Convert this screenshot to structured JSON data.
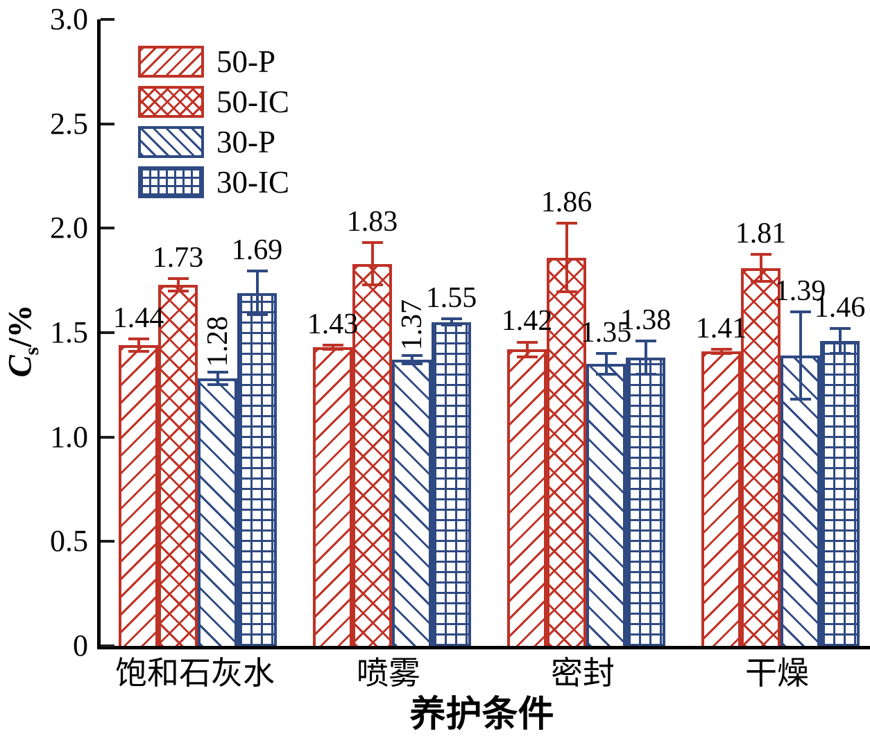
{
  "figure": {
    "y_axis_title": {
      "variable": "C",
      "subscript": "s",
      "unit": "/%"
    },
    "x_axis_title": "养护条件"
  },
  "chart_data": {
    "type": "bar",
    "title": "",
    "xlabel": "养护条件",
    "ylabel": "Cs/%",
    "ylim": [
      0,
      3.0
    ],
    "ytick_values": [
      0,
      0.5,
      1.0,
      1.5,
      2.0,
      2.5,
      3.0
    ],
    "ytick_labels": [
      "0",
      "0.5",
      "1.0",
      "1.5",
      "2.0",
      "2.5",
      "3.0"
    ],
    "grid": false,
    "legend_position": "upper-left",
    "error_bars": true,
    "categories": [
      "饱和石灰水",
      "喷雾",
      "密封",
      "干燥"
    ],
    "series": [
      {
        "name": "50-P",
        "color": "#bf3226",
        "hatch": "diagonal-up",
        "values": [
          1.44,
          1.43,
          1.42,
          1.41
        ],
        "errors": [
          0.03,
          0.01,
          0.035,
          0.01
        ],
        "label_vertical": [
          false,
          false,
          false,
          false
        ]
      },
      {
        "name": "50-IC",
        "color": "#bf3226",
        "hatch": "crosshatch",
        "values": [
          1.73,
          1.83,
          1.86,
          1.81
        ],
        "errors": [
          0.03,
          0.1,
          0.165,
          0.065
        ],
        "label_vertical": [
          false,
          false,
          false,
          false
        ]
      },
      {
        "name": "30-P",
        "color": "#2f4a82",
        "hatch": "diagonal-down",
        "values": [
          1.28,
          1.37,
          1.35,
          1.39
        ],
        "errors": [
          0.03,
          0.02,
          0.05,
          0.21
        ],
        "label_vertical": [
          true,
          true,
          false,
          false
        ]
      },
      {
        "name": "30-IC",
        "color": "#2f4a82",
        "hatch": "grid",
        "values": [
          1.69,
          1.55,
          1.38,
          1.46
        ],
        "errors": [
          0.105,
          0.015,
          0.08,
          0.06
        ],
        "label_vertical": [
          false,
          false,
          false,
          false
        ]
      }
    ]
  }
}
